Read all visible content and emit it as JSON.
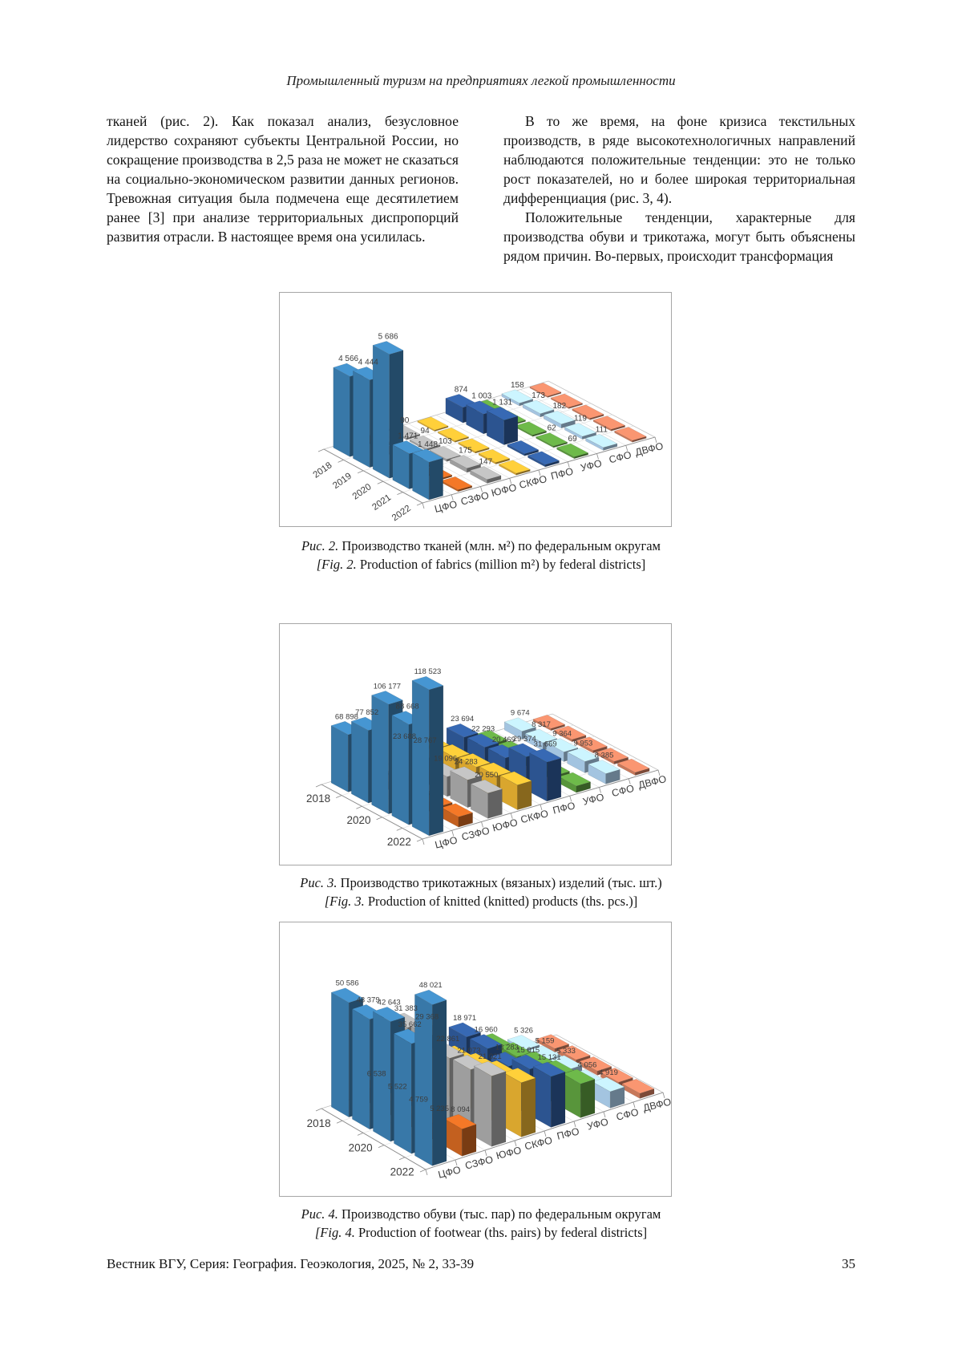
{
  "page": {
    "running_title": "Промышленный туризм на предприятиях легкой промышленности",
    "body": {
      "left_column": "тканей (рис. 2). Как показал анализ, безусловное лидерство сохраняют субъекты Центральной России, но сокращение производства в 2,5 раза не может не сказаться на социально-экономическом развитии данных регионов. Тревожная ситуация была подмечена еще десятилетием ранее [3] при анализе территориальных диспропорций развития отрасли. В настоящее время она усилилась.",
      "right_column_p1": "В то же время, на фоне кризиса текстильных производств, в ряде высокотехнологичных направлений наблюдаются положительные тенденции: это не только рост показателей, но и более широкая территориальная дифференциация (рис. 3, 4).",
      "right_column_p2": "Положительные тенденции, характерные для производства обуви и трикотажа, могут быть объяснены рядом причин. Во-первых, происходит трансформация"
    },
    "captions": [
      {
        "label_ru": "Рис. 2.",
        "text_ru": "Производство тканей (млн. м²) по федеральным округам",
        "label_en": "[Fig. 2.",
        "text_en": "Production of fabrics (million m²) by federal districts]"
      },
      {
        "label_ru": "Рис. 3.",
        "text_ru": "Производство трикотажных (вязаных) изделий (тыс. шт.)",
        "label_en": "[Fig. 3.",
        "text_en": "Production of knitted (knitted) products (ths. pcs.)]"
      },
      {
        "label_ru": "Рис. 4.",
        "text_ru": "Производство обуви (тыс. пар) по федеральным округам",
        "label_en": "[Fig. 4.",
        "text_en": "Production of footwear (ths. pairs) by federal districts]"
      }
    ],
    "footer": {
      "journal_line": "Вестник ВГУ, Серия: География. Геоэкология, 2025, № 2, 33-39",
      "page_number": "35"
    }
  },
  "chart_data": [
    {
      "type": "bar",
      "projection": "3d-columns",
      "title_ru": "Производство тканей (млн. м²) по федеральным округам",
      "title_en": "Production of fabrics (million m²) by federal districts",
      "unit": "млн. м²",
      "years": [
        "2018",
        "2019",
        "2020",
        "2021",
        "2022"
      ],
      "year_axis_labels_shown": [
        "2018",
        "2019",
        "2020",
        "2021",
        "2022"
      ],
      "districts": [
        "ЦФО",
        "СЗФО",
        "ЮФО",
        "СКФО",
        "ПФО",
        "УФО",
        "СФО",
        "ДВФО"
      ],
      "max_value": 5686,
      "grid": true,
      "legend": "none",
      "series": [
        {
          "name": "ЦФО",
          "key": "cfo",
          "color": "#3878A8",
          "values": [
            4566,
            4444,
            5686,
            1471,
            1448
          ],
          "unlabeled_frac": 0.012
        },
        {
          "name": "СЗФО",
          "key": "szfo",
          "color": "#C3601F",
          "values": [
            null,
            null,
            null,
            null,
            null
          ],
          "unlabeled_frac": 0.012
        },
        {
          "name": "ЮФО",
          "key": "yufo",
          "color": "#9E9E9E",
          "values": [
            90,
            94,
            103,
            175,
            147
          ],
          "unlabeled_frac": 0.012
        },
        {
          "name": "СКФО",
          "key": "skfo",
          "color": "#D9A62E",
          "values": [
            null,
            null,
            null,
            null,
            null
          ],
          "unlabeled_frac": 0.012
        },
        {
          "name": "ПФО",
          "key": "pfo",
          "color": "#2C5490",
          "values": [
            874,
            1003,
            1131,
            null,
            null
          ],
          "unlabeled_frac": 0.015
        },
        {
          "name": "УФО",
          "key": "ufo",
          "color": "#58953B",
          "values": [
            null,
            null,
            null,
            62,
            69
          ],
          "unlabeled_frac": 0.012
        },
        {
          "name": "СФО",
          "key": "sfo",
          "color": "#A3C4E0",
          "values": [
            158,
            173,
            182,
            119,
            111
          ],
          "unlabeled_frac": 0.012
        },
        {
          "name": "ДВФО",
          "key": "dvfo",
          "color": "#C8785A",
          "values": [
            null,
            null,
            null,
            null,
            null
          ],
          "unlabeled_frac": 0.012
        }
      ]
    },
    {
      "type": "bar",
      "projection": "3d-columns",
      "title_ru": "Производство трикотажных (вязаных) изделий (тыс. шт.)",
      "title_en": "Production of knitted (knitted) products (ths. pcs.)",
      "unit": "тыс. шт.",
      "years": [
        "2018",
        "2019",
        "2020",
        "2021",
        "2022"
      ],
      "year_axis_labels_shown": [
        "2018",
        "2020",
        "2022"
      ],
      "districts": [
        "ЦФО",
        "СЗФО",
        "ЮФО",
        "СКФО",
        "ПФО",
        "УФО",
        "СФО",
        "ДВФО"
      ],
      "max_value": 118523,
      "grid": true,
      "legend": "none",
      "series": [
        {
          "name": "ЦФО",
          "key": "cfo",
          "color": "#3878A8",
          "values": [
            68898,
            77852,
            106177,
            88668,
            118523
          ],
          "unlabeled_frac": 0.05
        },
        {
          "name": "СЗФО",
          "key": "szfo",
          "color": "#C3601F",
          "values": [
            null,
            null,
            null,
            null,
            null
          ],
          "unlabeled_frac": 0.07
        },
        {
          "name": "ЮФО",
          "key": "yufo",
          "color": "#9E9E9E",
          "values": [
            23688,
            28767,
            19096,
            24283,
            20550
          ],
          "unlabeled_frac": 0.05
        },
        {
          "name": "СКФО",
          "key": "skfo",
          "color": "#D9A62E",
          "values": [
            null,
            null,
            null,
            null,
            null
          ],
          "unlabeled_frac": 0.17
        },
        {
          "name": "ПФО",
          "key": "pfo",
          "color": "#2C5490",
          "values": [
            23694,
            22293,
            20469,
            29374,
            31669
          ],
          "unlabeled_frac": 0.05
        },
        {
          "name": "УФО",
          "key": "ufo",
          "color": "#58953B",
          "values": [
            null,
            null,
            null,
            null,
            null
          ],
          "unlabeled_frac": 0.045
        },
        {
          "name": "СФО",
          "key": "sfo",
          "color": "#A3C4E0",
          "values": [
            9674,
            8317,
            9364,
            9953,
            8385
          ],
          "unlabeled_frac": 0.05
        },
        {
          "name": "ДВФО",
          "key": "dvfo",
          "color": "#C8785A",
          "values": [
            null,
            null,
            null,
            null,
            null
          ],
          "unlabeled_frac": 0.02
        }
      ]
    },
    {
      "type": "bar",
      "projection": "3d-columns",
      "title_ru": "Производство обуви (тыс. пар) по федеральным округам",
      "title_en": "Production of footwear (ths. pairs) by federal districts",
      "unit": "тыс. пар",
      "years": [
        "2018",
        "2019",
        "2020",
        "2021",
        "2022"
      ],
      "year_axis_labels_shown": [
        "2018",
        "2020",
        "2022"
      ],
      "districts": [
        "ЦФО",
        "СЗФО",
        "ЮФО",
        "СКФО",
        "ПФО",
        "УФО",
        "СФО",
        "ДВФО"
      ],
      "max_value": 50586,
      "grid": true,
      "legend": "none",
      "series": [
        {
          "name": "ЦФО",
          "key": "cfo",
          "color": "#3878A8",
          "values": [
            50586,
            43379,
            42643,
            35662,
            48021
          ],
          "unlabeled_frac": 0.1
        },
        {
          "name": "СЗФО",
          "key": "szfo",
          "color": "#C3601F",
          "values": [
            6538,
            5522,
            4759,
            5235,
            8094
          ],
          "unlabeled_frac": 0.1
        },
        {
          "name": "ЮФО",
          "key": "yufo",
          "color": "#9E9E9E",
          "values": [
            31383,
            29368,
            22861,
            21073,
            21021
          ],
          "unlabeled_frac": 0.1
        },
        {
          "name": "СКФО",
          "key": "skfo",
          "color": "#D9A62E",
          "values": [
            null,
            null,
            null,
            null,
            null
          ],
          "unlabeled_frac": 0.32
        },
        {
          "name": "ПФО",
          "key": "pfo",
          "color": "#2C5490",
          "values": [
            18971,
            16960,
            13283,
            15015,
            15131
          ],
          "unlabeled_frac": 0.1
        },
        {
          "name": "УФО",
          "key": "ufo",
          "color": "#58953B",
          "values": [
            null,
            null,
            null,
            null,
            null
          ],
          "unlabeled_frac": 0.2
        },
        {
          "name": "СФО",
          "key": "sfo",
          "color": "#A3C4E0",
          "values": [
            5326,
            5159,
            5333,
            4056,
            4919
          ],
          "unlabeled_frac": 0.1
        },
        {
          "name": "ДВФО",
          "key": "dvfo",
          "color": "#C8785A",
          "values": [
            null,
            null,
            null,
            null,
            null
          ],
          "unlabeled_frac": 0.03
        }
      ]
    }
  ]
}
